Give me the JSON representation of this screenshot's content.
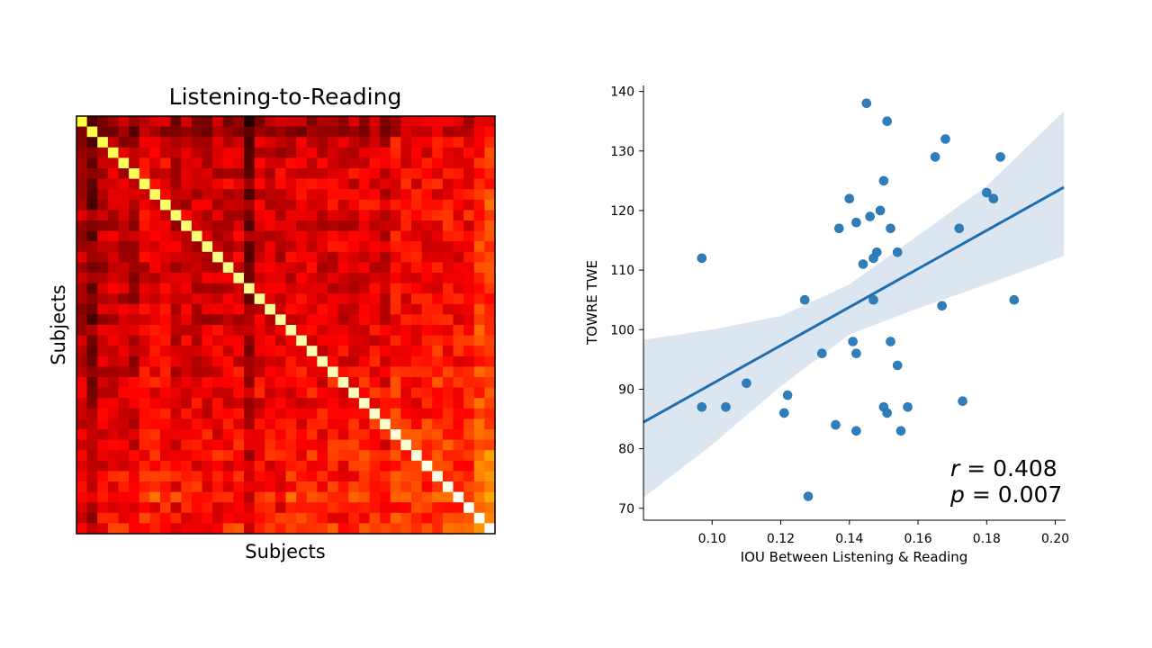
{
  "chart_data": [
    {
      "type": "heatmap",
      "title": "Listening-to-Reading",
      "xlabel": "Subjects",
      "ylabel": "Subjects",
      "n": 40,
      "colormap": "hot",
      "diagonal_value": 1.0,
      "seed": 7,
      "row_effect": [
        0.15,
        0.1,
        0.25,
        0.25,
        0.3,
        0.3,
        0.3,
        0.28,
        0.3,
        0.3,
        0.28,
        0.28,
        0.3,
        0.28,
        0.28,
        0.3,
        0.3,
        0.3,
        0.3,
        0.28,
        0.35,
        0.32,
        0.32,
        0.32,
        0.35,
        0.38,
        0.38,
        0.35,
        0.4,
        0.4,
        0.42,
        0.42,
        0.45,
        0.42,
        0.45,
        0.45,
        0.55,
        0.4,
        0.45,
        0.5
      ],
      "col_effect": [
        0.22,
        0.05,
        0.25,
        0.28,
        0.28,
        0.22,
        0.35,
        0.35,
        0.35,
        0.28,
        0.3,
        0.3,
        0.28,
        0.3,
        0.32,
        0.32,
        0.1,
        0.32,
        0.32,
        0.32,
        0.35,
        0.35,
        0.35,
        0.32,
        0.35,
        0.35,
        0.35,
        0.38,
        0.38,
        0.32,
        0.45,
        0.42,
        0.42,
        0.42,
        0.45,
        0.45,
        0.42,
        0.45,
        0.55,
        0.6
      ]
    },
    {
      "type": "scatter",
      "xlabel": "IOU Between Listening & Reading",
      "ylabel": "TOWRE TWE",
      "xlim": [
        0.08,
        0.203
      ],
      "ylim": [
        68,
        141
      ],
      "xticks": [
        "0.10",
        "0.12",
        "0.14",
        "0.16",
        "0.18",
        "0.20"
      ],
      "yticks": [
        "70",
        "80",
        "90",
        "100",
        "110",
        "120",
        "130",
        "140"
      ],
      "points": [
        [
          0.097,
          87
        ],
        [
          0.097,
          112
        ],
        [
          0.104,
          87
        ],
        [
          0.11,
          91
        ],
        [
          0.121,
          86
        ],
        [
          0.122,
          89
        ],
        [
          0.127,
          105
        ],
        [
          0.128,
          72
        ],
        [
          0.132,
          96
        ],
        [
          0.136,
          84
        ],
        [
          0.137,
          117
        ],
        [
          0.14,
          122
        ],
        [
          0.141,
          98
        ],
        [
          0.142,
          118
        ],
        [
          0.142,
          96
        ],
        [
          0.142,
          83
        ],
        [
          0.144,
          111
        ],
        [
          0.145,
          138
        ],
        [
          0.146,
          119
        ],
        [
          0.147,
          112
        ],
        [
          0.147,
          105
        ],
        [
          0.148,
          113
        ],
        [
          0.149,
          120
        ],
        [
          0.15,
          125
        ],
        [
          0.15,
          87
        ],
        [
          0.151,
          135
        ],
        [
          0.151,
          86
        ],
        [
          0.152,
          117
        ],
        [
          0.152,
          98
        ],
        [
          0.154,
          113
        ],
        [
          0.154,
          94
        ],
        [
          0.155,
          83
        ],
        [
          0.157,
          87
        ],
        [
          0.165,
          129
        ],
        [
          0.167,
          104
        ],
        [
          0.168,
          132
        ],
        [
          0.172,
          117
        ],
        [
          0.173,
          88
        ],
        [
          0.18,
          123
        ],
        [
          0.182,
          122
        ],
        [
          0.184,
          129
        ],
        [
          0.188,
          105
        ]
      ],
      "regression": {
        "slope": 322,
        "intercept": 58.7
      },
      "ci": {
        "x": [
          0.08,
          0.1,
          0.12,
          0.14,
          0.16,
          0.18,
          0.2025
        ],
        "lower": [
          71.8,
          80.7,
          90.5,
          99.2,
          103.6,
          107.6,
          112.4
        ],
        "upper": [
          98.3,
          100.0,
          102.3,
          107.6,
          115.8,
          124.1,
          136.7
        ]
      },
      "annotation": {
        "r": "0.408",
        "p": "0.007"
      },
      "point_color": "#2e7ebc",
      "line_color": "#1f6fb0",
      "band_color": "#dbe6f1"
    }
  ]
}
